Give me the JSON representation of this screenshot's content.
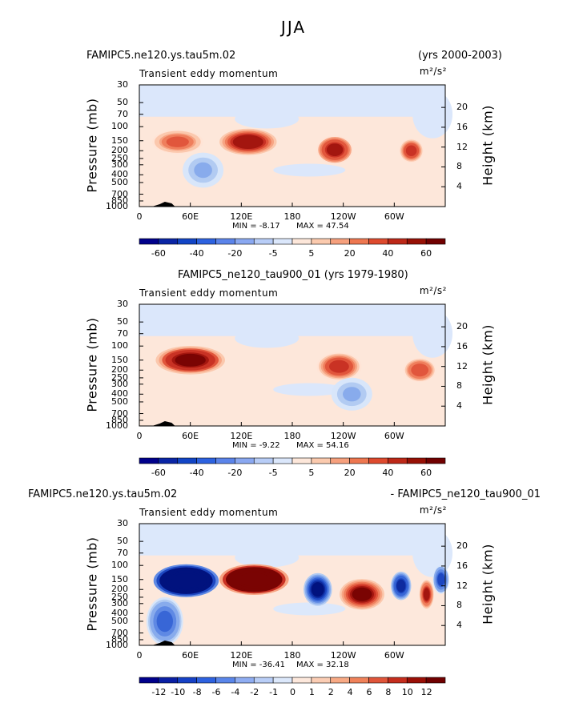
{
  "page": {
    "title": "JJA"
  },
  "chart_data": [
    {
      "type": "heatmap",
      "title_left": "FAMIPC5.ne120.ys.tau5m.02",
      "title_right": "(yrs 2000-2003)",
      "subtitle": "Transient eddy momentum",
      "units": "m²/s²",
      "ylabel": "Pressure (mb)",
      "ylabel_right": "Height (km)",
      "pressure_ticks": [
        "30",
        "50",
        "70",
        "100",
        "150",
        "200",
        "250",
        "300",
        "400",
        "500",
        "700",
        "850",
        "1000"
      ],
      "height_ticks": [
        "20",
        "16",
        "12",
        "8",
        "4"
      ],
      "lon_ticks": [
        "0",
        "60E",
        "120E",
        "180",
        "120W",
        "60W"
      ],
      "min_label": "MIN =   -8.17",
      "max_label": "MAX =   47.54",
      "colorbar_labels": [
        "-60",
        "-40",
        "-20",
        "-5",
        "5",
        "20",
        "40",
        "60"
      ],
      "features": [
        {
          "lon": 45,
          "plev": 155,
          "value": 22,
          "w": 25,
          "h": 1.1
        },
        {
          "lon": 128,
          "plev": 155,
          "value": 47,
          "w": 28,
          "h": 1.2
        },
        {
          "lon": 230,
          "plev": 195,
          "value": 40,
          "w": 18,
          "h": 1.3
        },
        {
          "lon": 320,
          "plev": 200,
          "value": 30,
          "w": 12,
          "h": 1.1
        },
        {
          "lon": 75,
          "plev": 350,
          "value": -8,
          "w": 20,
          "h": 1.6
        }
      ]
    },
    {
      "type": "heatmap",
      "title_left": "FAMIPC5_ne120_tau900_01 (yrs 1979-1980)",
      "subtitle": "Transient eddy momentum",
      "units": "m²/s²",
      "ylabel": "Pressure (mb)",
      "ylabel_right": "Height (km)",
      "pressure_ticks": [
        "30",
        "50",
        "70",
        "100",
        "150",
        "200",
        "250",
        "300",
        "400",
        "500",
        "700",
        "850",
        "1000"
      ],
      "height_ticks": [
        "20",
        "16",
        "12",
        "8",
        "4"
      ],
      "lon_ticks": [
        "0",
        "60E",
        "120E",
        "180",
        "120W",
        "60W"
      ],
      "min_label": "MIN =   -9.22",
      "max_label": "MAX =   54.16",
      "colorbar_labels": [
        "-60",
        "-40",
        "-20",
        "-5",
        "5",
        "20",
        "40",
        "60"
      ],
      "features": [
        {
          "lon": 60,
          "plev": 150,
          "value": 54,
          "w": 34,
          "h": 1.3
        },
        {
          "lon": 235,
          "plev": 180,
          "value": 35,
          "w": 22,
          "h": 1.3
        },
        {
          "lon": 330,
          "plev": 200,
          "value": 28,
          "w": 16,
          "h": 1.1
        },
        {
          "lon": 250,
          "plev": 400,
          "value": -9,
          "w": 20,
          "h": 1.5
        }
      ]
    },
    {
      "type": "heatmap",
      "title_left": "FAMIPC5.ne120.ys.tau5m.02",
      "title_right": "- FAMIPC5_ne120_tau900_01",
      "subtitle": "Transient eddy momentum",
      "units": "m²/s²",
      "ylabel": "Pressure (mb)",
      "ylabel_right": "Height (km)",
      "pressure_ticks": [
        "30",
        "50",
        "70",
        "100",
        "150",
        "200",
        "250",
        "300",
        "400",
        "500",
        "700",
        "850",
        "1000"
      ],
      "height_ticks": [
        "20",
        "16",
        "12",
        "8",
        "4"
      ],
      "lon_ticks": [
        "0",
        "60E",
        "120E",
        "180",
        "120W",
        "60W"
      ],
      "min_label": "MIN =  -36.41",
      "max_label": "MAX =   32.18",
      "colorbar_labels": [
        "-12",
        "-10",
        "-8",
        "-6",
        "-4",
        "-2",
        "-1",
        "0",
        "1",
        "2",
        "4",
        "6",
        "8",
        "10",
        "12"
      ],
      "features": [
        {
          "lon": 55,
          "plev": 155,
          "value": -36,
          "w": 32,
          "h": 1.5
        },
        {
          "lon": 135,
          "plev": 150,
          "value": 32,
          "w": 34,
          "h": 1.4
        },
        {
          "lon": 210,
          "plev": 200,
          "value": -14,
          "w": 14,
          "h": 1.5
        },
        {
          "lon": 262,
          "plev": 230,
          "value": 13,
          "w": 22,
          "h": 1.4
        },
        {
          "lon": 308,
          "plev": 180,
          "value": -11,
          "w": 10,
          "h": 1.3
        },
        {
          "lon": 338,
          "plev": 230,
          "value": 10,
          "w": 7,
          "h": 1.3
        },
        {
          "lon": 30,
          "plev": 500,
          "value": -6,
          "w": 18,
          "h": 2.2
        },
        {
          "lon": 355,
          "plev": 150,
          "value": -8,
          "w": 8,
          "h": 1.3
        }
      ]
    }
  ]
}
